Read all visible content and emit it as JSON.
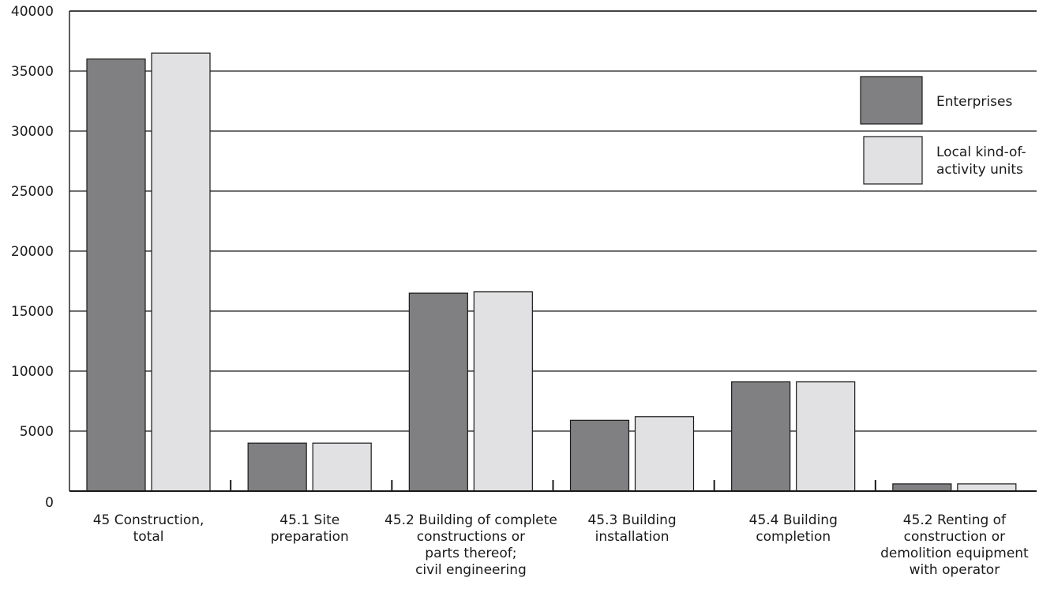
{
  "chart_data": {
    "type": "bar",
    "title": "",
    "xlabel": "",
    "ylabel": "",
    "ylim": [
      0,
      40000
    ],
    "yticks": [
      "0",
      "5000",
      "10000",
      "15000",
      "20000",
      "25000",
      "30000",
      "35000",
      "40000"
    ],
    "grid": true,
    "legend_position": "top-right",
    "categories": [
      [
        "45 Construction,",
        "total"
      ],
      [
        "45.1 Site",
        "preparation"
      ],
      [
        "45.2 Building of complete",
        "constructions or",
        "parts thereof;",
        "civil engineering"
      ],
      [
        "45.3 Building",
        "installation"
      ],
      [
        "45.4 Building",
        "completion"
      ],
      [
        "45.2 Renting of",
        "construction or",
        "demolition equipment",
        "with operator"
      ]
    ],
    "series": [
      {
        "name": "Enterprises",
        "legend_lines": [
          "Enterprises"
        ],
        "color": "#808083",
        "values": [
          36000,
          4000,
          16500,
          5900,
          9100,
          600
        ]
      },
      {
        "name": "Local kind-of-activity units",
        "legend_lines": [
          "Local kind-of-",
          "activity units"
        ],
        "color": "#e1e1e3",
        "values": [
          36500,
          4000,
          16600,
          6200,
          9100,
          600
        ]
      }
    ]
  }
}
